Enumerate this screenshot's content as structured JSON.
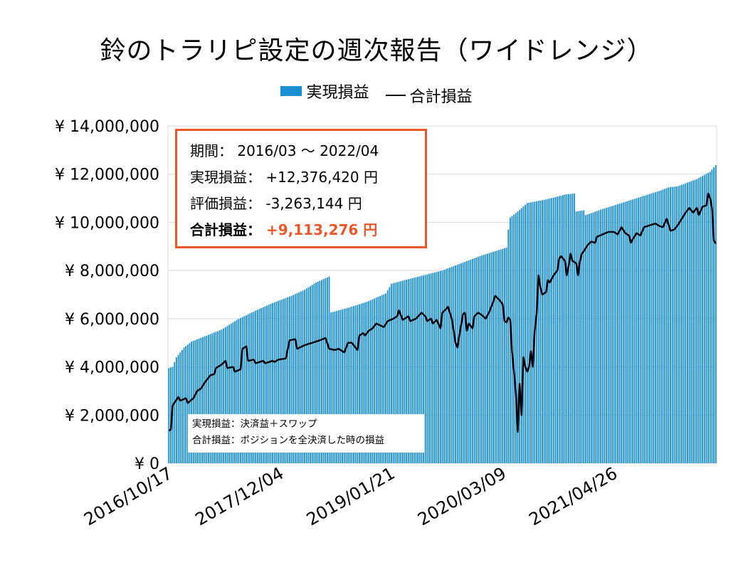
{
  "title": "鈴のトラリピ設定の週次報告（ワイドレンジ）",
  "legend": {
    "realized_label": "実現損益",
    "total_label": "合計損益",
    "bar_color": "#1b8fd3",
    "line_color": "#000000"
  },
  "summary": {
    "period_label": "期間：",
    "period_value": "2016/03 ～ 2022/04",
    "realized_label": "実現損益：",
    "realized_value": "+12,376,420 円",
    "unrealized_label": "評価損益：",
    "unrealized_value": "-3,263,144 円",
    "total_label": "合計損益：",
    "total_value": "+9,113,276 円",
    "accent_color": "#e8582b"
  },
  "note": {
    "line1": "実現損益：決済益＋スワップ",
    "line2": "合計損益：ポジションを全決済した時の損益"
  },
  "chart_data": {
    "type": "bar",
    "title": "鈴のトラリピ設定の週次報告（ワイドレンジ）",
    "y_tick_labels": [
      "¥ 0",
      "¥ 2,000,000",
      "¥ 4,000,000",
      "¥ 6,000,000",
      "¥ 8,000,000",
      "¥ 10,000,000",
      "¥ 12,000,000",
      "¥ 14,000,000"
    ],
    "y_ticks": [
      0,
      2000000,
      4000000,
      6000000,
      8000000,
      10000000,
      12000000,
      14000000
    ],
    "ylim": [
      0,
      14000000
    ],
    "x_tick_labels": [
      "2016/10/17",
      "2017/12/04",
      "2019/01/21",
      "2020/03/09",
      "2021/04/26"
    ],
    "x_tick_weeks": [
      0,
      59,
      118,
      177,
      236
    ],
    "n_weeks": 291,
    "grid": "horizontal",
    "legend_position": "top",
    "series": [
      {
        "name": "実現損益",
        "kind": "bar",
        "points": [
          [
            0,
            3950000
          ],
          [
            2,
            4000000
          ],
          [
            4,
            4400000
          ],
          [
            8,
            4800000
          ],
          [
            12,
            5050000
          ],
          [
            20,
            5300000
          ],
          [
            28,
            5550000
          ],
          [
            36,
            5950000
          ],
          [
            45,
            6300000
          ],
          [
            55,
            6650000
          ],
          [
            65,
            6950000
          ],
          [
            72,
            7200000
          ],
          [
            78,
            7500000
          ],
          [
            85,
            7750000
          ],
          [
            85.5,
            6250000
          ],
          [
            95,
            6450000
          ],
          [
            105,
            6700000
          ],
          [
            115,
            7050000
          ],
          [
            118,
            7450000
          ],
          [
            125,
            7600000
          ],
          [
            135,
            7800000
          ],
          [
            145,
            8000000
          ],
          [
            155,
            8300000
          ],
          [
            165,
            8600000
          ],
          [
            173,
            8800000
          ],
          [
            179,
            8950000
          ],
          [
            180,
            9700000
          ],
          [
            181,
            10200000
          ],
          [
            185,
            10450000
          ],
          [
            190,
            10800000
          ],
          [
            200,
            10950000
          ],
          [
            210,
            11150000
          ],
          [
            215,
            11200000
          ],
          [
            216,
            10450000
          ],
          [
            220,
            10500000
          ],
          [
            221,
            10300000
          ],
          [
            230,
            10550000
          ],
          [
            240,
            10800000
          ],
          [
            250,
            11050000
          ],
          [
            260,
            11300000
          ],
          [
            265,
            11450000
          ],
          [
            270,
            11500000
          ],
          [
            280,
            11800000
          ],
          [
            287,
            12100000
          ],
          [
            290,
            12376420
          ]
        ]
      },
      {
        "name": "合計損益",
        "kind": "line",
        "points": [
          [
            0,
            1350000
          ],
          [
            1,
            1400000
          ],
          [
            2,
            2400000
          ],
          [
            5,
            2750000
          ],
          [
            6,
            2600000
          ],
          [
            9,
            2700000
          ],
          [
            10,
            2500000
          ],
          [
            13,
            2700000
          ],
          [
            15,
            3000000
          ],
          [
            17,
            3100000
          ],
          [
            19,
            3350000
          ],
          [
            22,
            3650000
          ],
          [
            24,
            3700000
          ],
          [
            25,
            3950000
          ],
          [
            28,
            4100000
          ],
          [
            30,
            4250000
          ],
          [
            31,
            3950000
          ],
          [
            34,
            4000000
          ],
          [
            35,
            3800000
          ],
          [
            38,
            3900000
          ],
          [
            39,
            4750000
          ],
          [
            41,
            4850000
          ],
          [
            42,
            4250000
          ],
          [
            45,
            4300000
          ],
          [
            46,
            4150000
          ],
          [
            50,
            4250000
          ],
          [
            51,
            4150000
          ],
          [
            55,
            4250000
          ],
          [
            56,
            4200000
          ],
          [
            58,
            4300000
          ],
          [
            62,
            4350000
          ],
          [
            64,
            5100000
          ],
          [
            67,
            5150000
          ],
          [
            68,
            4750000
          ],
          [
            72,
            4900000
          ],
          [
            76,
            5000000
          ],
          [
            80,
            5100000
          ],
          [
            83,
            5200000
          ],
          [
            85,
            4750000
          ],
          [
            88,
            4700000
          ],
          [
            90,
            4750000
          ],
          [
            93,
            4600000
          ],
          [
            95,
            5000000
          ],
          [
            97,
            5000000
          ],
          [
            100,
            4700000
          ],
          [
            101,
            5300000
          ],
          [
            103,
            5400000
          ],
          [
            104,
            5300000
          ],
          [
            106,
            5500000
          ],
          [
            108,
            5600000
          ],
          [
            110,
            5800000
          ],
          [
            114,
            5650000
          ],
          [
            116,
            5900000
          ],
          [
            119,
            6000000
          ],
          [
            121,
            6100000
          ],
          [
            122,
            6350000
          ],
          [
            124,
            5950000
          ],
          [
            127,
            6100000
          ],
          [
            128,
            5900000
          ],
          [
            131,
            6000000
          ],
          [
            134,
            6250000
          ],
          [
            136,
            6100000
          ],
          [
            137,
            5900000
          ],
          [
            139,
            6000000
          ],
          [
            140,
            5800000
          ],
          [
            142,
            5950000
          ],
          [
            144,
            5600000
          ],
          [
            145,
            6250000
          ],
          [
            147,
            6400000
          ],
          [
            148,
            6500000
          ],
          [
            150,
            6000000
          ],
          [
            151,
            5500000
          ],
          [
            152,
            5000000
          ],
          [
            153,
            4800000
          ],
          [
            154,
            5300000
          ],
          [
            156,
            6200000
          ],
          [
            157,
            6250000
          ],
          [
            158,
            5500000
          ],
          [
            159,
            5800000
          ],
          [
            161,
            5600000
          ],
          [
            162,
            6100000
          ],
          [
            164,
            6250000
          ],
          [
            166,
            6150000
          ],
          [
            168,
            6000000
          ],
          [
            170,
            6300000
          ],
          [
            171,
            6500000
          ],
          [
            172,
            6700000
          ],
          [
            173,
            6950000
          ],
          [
            175,
            6800000
          ],
          [
            177,
            6600000
          ],
          [
            178,
            5900000
          ],
          [
            179,
            5850000
          ],
          [
            180,
            6050000
          ],
          [
            181,
            5950000
          ],
          [
            182,
            4600000
          ],
          [
            183,
            3800000
          ],
          [
            184,
            2900000
          ],
          [
            185,
            1300000
          ],
          [
            186,
            3300000
          ],
          [
            187,
            2000000
          ],
          [
            188,
            4400000
          ],
          [
            189,
            4000000
          ],
          [
            190,
            3800000
          ],
          [
            191,
            4000000
          ],
          [
            192,
            4650000
          ],
          [
            193,
            4000000
          ],
          [
            194,
            5500000
          ],
          [
            195,
            6200000
          ],
          [
            196,
            7800000
          ],
          [
            197,
            7300000
          ],
          [
            198,
            7000000
          ],
          [
            200,
            7100000
          ],
          [
            201,
            7600000
          ],
          [
            202,
            7500000
          ],
          [
            204,
            7800000
          ],
          [
            206,
            8000000
          ],
          [
            207,
            8500000
          ],
          [
            208,
            8600000
          ],
          [
            210,
            8400000
          ],
          [
            211,
            7800000
          ],
          [
            212,
            8200000
          ],
          [
            213,
            8700000
          ],
          [
            214,
            8400000
          ],
          [
            216,
            8300000
          ],
          [
            217,
            7800000
          ],
          [
            218,
            8400000
          ],
          [
            219,
            8700000
          ],
          [
            220,
            8800000
          ],
          [
            222,
            9050000
          ],
          [
            224,
            9200000
          ],
          [
            226,
            9150000
          ],
          [
            227,
            9400000
          ],
          [
            230,
            9500000
          ],
          [
            233,
            9600000
          ],
          [
            236,
            9600000
          ],
          [
            238,
            9500000
          ],
          [
            240,
            9800000
          ],
          [
            242,
            9550000
          ],
          [
            244,
            9450000
          ],
          [
            245,
            9150000
          ],
          [
            246,
            9300000
          ],
          [
            248,
            9550000
          ],
          [
            250,
            9450000
          ],
          [
            252,
            9800000
          ],
          [
            254,
            9850000
          ],
          [
            256,
            9900000
          ],
          [
            258,
            9950000
          ],
          [
            260,
            9850000
          ],
          [
            262,
            9800000
          ],
          [
            264,
            10150000
          ],
          [
            266,
            9650000
          ],
          [
            268,
            9700000
          ],
          [
            270,
            9900000
          ],
          [
            272,
            10150000
          ],
          [
            274,
            10400000
          ],
          [
            276,
            10600000
          ],
          [
            278,
            10400000
          ],
          [
            280,
            10600000
          ],
          [
            281,
            10300000
          ],
          [
            283,
            10650000
          ],
          [
            285,
            10700000
          ],
          [
            286,
            11200000
          ],
          [
            287,
            11000000
          ],
          [
            288,
            10600000
          ],
          [
            289,
            9250000
          ],
          [
            290,
            9113276
          ]
        ]
      }
    ]
  }
}
